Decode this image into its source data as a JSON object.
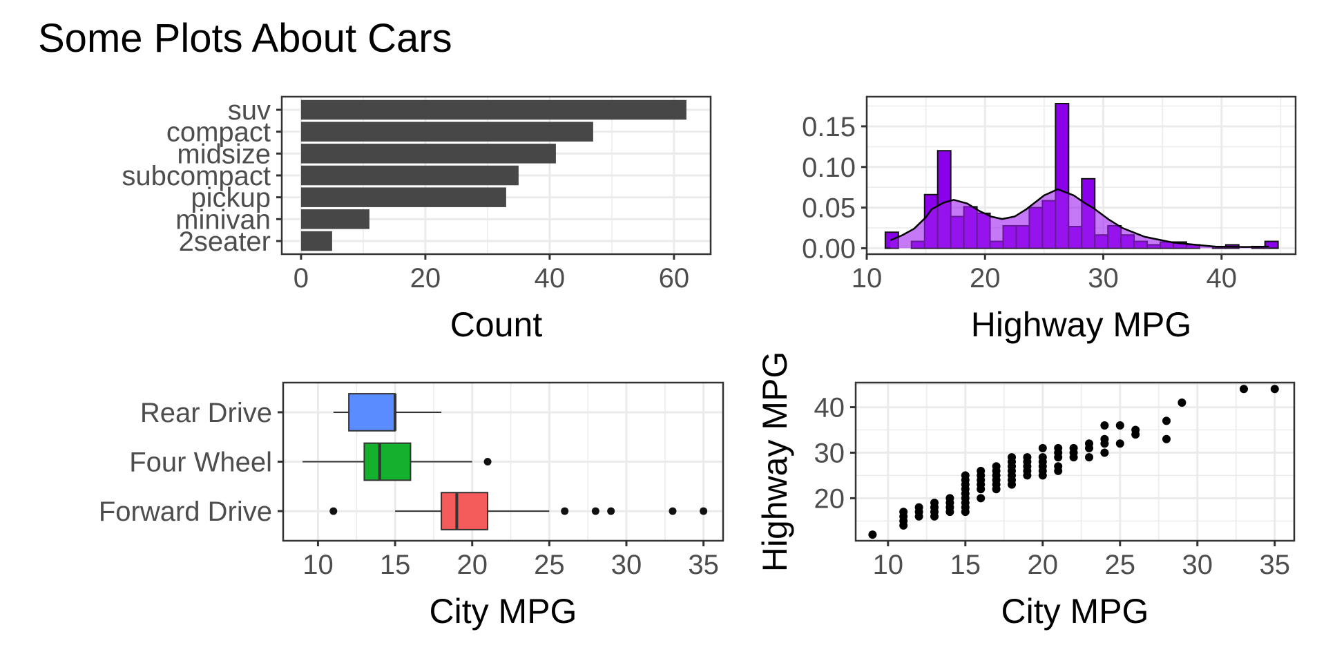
{
  "title": "Some Plots About Cars",
  "chart_data": [
    {
      "type": "bar",
      "orientation": "horizontal",
      "xlabel": "Count",
      "ylabel": "",
      "categories": [
        "2seater",
        "minivan",
        "pickup",
        "subcompact",
        "midsize",
        "compact",
        "suv"
      ],
      "values": [
        5,
        11,
        33,
        35,
        41,
        47,
        62
      ],
      "xlim": [
        -3.1,
        65.9
      ],
      "xticks": [
        0,
        20,
        40,
        60
      ],
      "xtick_labels": [
        "0",
        "20",
        "40",
        "60"
      ],
      "xminor": [
        10,
        30,
        50
      ],
      "bar_color": "#474747",
      "grid": true
    },
    {
      "type": "histogram",
      "xlabel": "Highway MPG",
      "ylabel": "",
      "bin_start": 11.57,
      "bin_width": 1.107,
      "values": [
        0.0197,
        0,
        0.0084,
        0.066,
        0.12,
        0.039,
        0.051,
        0.043,
        0.0084,
        0.0276,
        0.0276,
        0.05,
        0.0585,
        0.178,
        0.0267,
        0.0855,
        0.0163,
        0.0276,
        0.0163,
        0.0084,
        0.0042,
        0.0076,
        0.0076,
        0.0042,
        0,
        0.0021,
        0.0042,
        0,
        0.0021,
        0.0084
      ],
      "density": {
        "x": [
          12,
          13,
          14,
          15,
          15.5,
          16.5,
          17.35,
          18.5,
          19.5,
          20.5,
          21.45,
          22.5,
          23.5,
          25,
          26.15,
          27.5,
          28.5,
          29.2,
          30.5,
          31.6,
          33.5,
          35.9,
          38,
          39.5,
          42,
          44
        ],
        "y": [
          0.0098,
          0.016,
          0.024,
          0.038,
          0.048,
          0.056,
          0.0596,
          0.055,
          0.046,
          0.039,
          0.036,
          0.039,
          0.048,
          0.065,
          0.0726,
          0.065,
          0.055,
          0.049,
          0.035,
          0.025,
          0.014,
          0.007,
          0.004,
          0.002,
          0.0015,
          0.002
        ]
      },
      "xlim": [
        10,
        46.26
      ],
      "ylim": [
        -0.0073,
        0.1865
      ],
      "xticks": [
        10,
        20,
        30,
        40
      ],
      "xtick_labels": [
        "10",
        "20",
        "30",
        "40"
      ],
      "xminor": [
        15,
        25,
        35,
        45
      ],
      "yticks": [
        0,
        0.05,
        0.1,
        0.15
      ],
      "ytick_labels": [
        "0.00",
        "0.05",
        "0.10",
        "0.15"
      ],
      "yminor": [
        0.025,
        0.075,
        0.125,
        0.175
      ],
      "bar_color": "#8b00ea",
      "density_color": "#a020f0",
      "grid": true
    },
    {
      "type": "boxplot",
      "orientation": "horizontal",
      "xlabel": "City MPG",
      "ylabel": "",
      "categories": [
        "Forward Drive",
        "Four Wheel",
        "Rear Drive"
      ],
      "boxes": [
        {
          "min": 15,
          "q1": 18,
          "median": 19,
          "q3": 21,
          "max": 25,
          "outliers": [
            11,
            26,
            28,
            29,
            33,
            35
          ],
          "color": "#f45b5b"
        },
        {
          "min": 9,
          "q1": 13,
          "median": 14,
          "q3": 16,
          "max": 20,
          "outliers": [
            21
          ],
          "color": "#14b12f"
        },
        {
          "min": 11,
          "q1": 12,
          "median": 15,
          "q3": 15,
          "max": 18,
          "outliers": [],
          "color": "#5a8cff"
        }
      ],
      "xlim": [
        7.74,
        36.27
      ],
      "xticks": [
        10,
        15,
        20,
        25,
        30,
        35
      ],
      "xtick_labels": [
        "10",
        "15",
        "20",
        "25",
        "30",
        "35"
      ],
      "xminor": [
        12.5,
        17.5,
        22.5,
        27.5,
        32.5
      ],
      "grid": true
    },
    {
      "type": "scatter",
      "xlabel": "City MPG",
      "ylabel": "Highway MPG",
      "columns": [
        {
          "x": 9,
          "y": [
            12
          ]
        },
        {
          "x": 11,
          "y": [
            14,
            15,
            16,
            17
          ]
        },
        {
          "x": 12,
          "y": [
            16,
            17,
            18
          ]
        },
        {
          "x": 13,
          "y": [
            16,
            17,
            18,
            19
          ]
        },
        {
          "x": 14,
          "y": [
            17,
            18,
            19,
            20
          ]
        },
        {
          "x": 15,
          "y": [
            17,
            18,
            19,
            20,
            21,
            22,
            23,
            24,
            25
          ]
        },
        {
          "x": 16,
          "y": [
            20,
            22,
            23,
            24,
            25,
            26
          ]
        },
        {
          "x": 17,
          "y": [
            22,
            23,
            24,
            25,
            26,
            27
          ]
        },
        {
          "x": 18,
          "y": [
            23,
            24,
            25,
            26,
            27,
            28,
            29
          ]
        },
        {
          "x": 19,
          "y": [
            25,
            26,
            27,
            28,
            29
          ]
        },
        {
          "x": 20,
          "y": [
            25,
            26,
            27,
            28,
            29,
            31
          ]
        },
        {
          "x": 21,
          "y": [
            26,
            27,
            29,
            30,
            31
          ]
        },
        {
          "x": 22,
          "y": [
            29,
            30,
            31
          ]
        },
        {
          "x": 23,
          "y": [
            29,
            31,
            32
          ]
        },
        {
          "x": 24,
          "y": [
            30,
            32,
            33,
            36
          ]
        },
        {
          "x": 25,
          "y": [
            32,
            36
          ]
        },
        {
          "x": 26,
          "y": [
            34,
            35
          ]
        },
        {
          "x": 28,
          "y": [
            33,
            37
          ]
        },
        {
          "x": 29,
          "y": [
            41
          ]
        },
        {
          "x": 33,
          "y": [
            44
          ]
        },
        {
          "x": 35,
          "y": [
            44
          ]
        }
      ],
      "xlim": [
        7.91,
        36.26
      ],
      "ylim": [
        10.65,
        45.4
      ],
      "xticks": [
        10,
        15,
        20,
        25,
        30,
        35
      ],
      "xtick_labels": [
        "10",
        "15",
        "20",
        "25",
        "30",
        "35"
      ],
      "xminor": [
        12.5,
        17.5,
        22.5,
        27.5,
        32.5
      ],
      "yticks": [
        20,
        30,
        40
      ],
      "ytick_labels": [
        "20",
        "30",
        "40"
      ],
      "yminor": [
        15,
        25,
        35,
        45
      ],
      "point_color": "#000000",
      "grid": true
    }
  ]
}
